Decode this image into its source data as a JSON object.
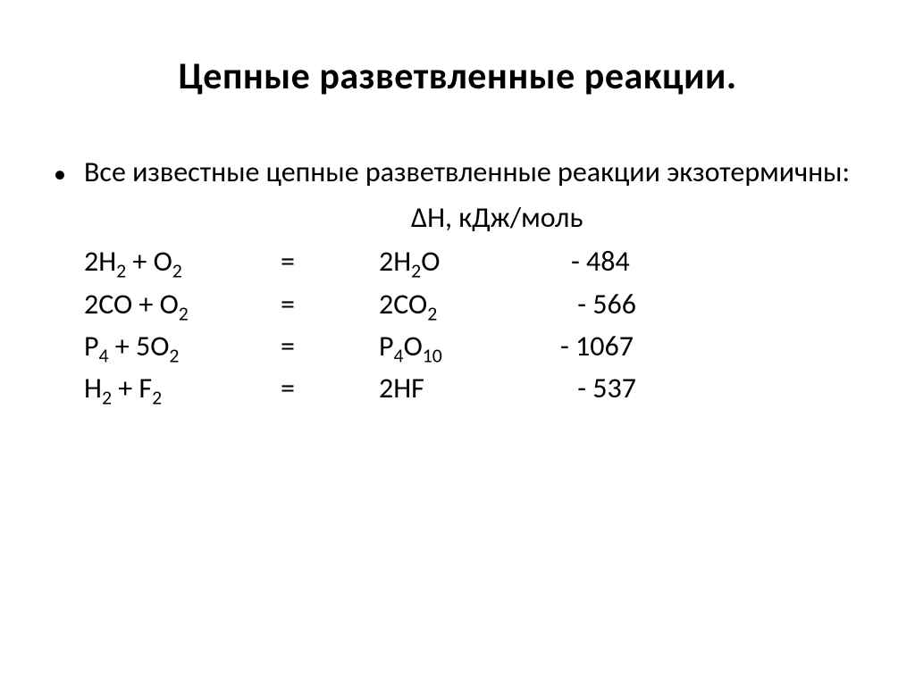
{
  "title": "Цепные разветвленные реакции.",
  "intro": "Все известные цепные разветвленные реакции экзотермичны:",
  "enthalpy_header_prefix": "Δ",
  "enthalpy_header": "H, кДж/моль",
  "reactions": [
    {
      "lhs_parts": [
        "2H",
        "2",
        " + O",
        "2"
      ],
      "eq": "=",
      "rhs_parts": [
        "2H",
        "2",
        "O"
      ],
      "value": "- 484"
    },
    {
      "lhs_parts": [
        "2CO + O",
        "2"
      ],
      "eq": "=",
      "rhs_parts": [
        "2CO",
        "2"
      ],
      "value": "- 566",
      "value_pad": " "
    },
    {
      "lhs_parts": [
        "P",
        "4",
        " + 5O",
        "2"
      ],
      "eq": "=",
      "rhs_parts": [
        "P",
        "4",
        "O",
        "10"
      ],
      "value": "- 1067"
    },
    {
      "lhs_parts": [
        "H",
        "2",
        " + F",
        "2"
      ],
      "eq": "=",
      "rhs_parts": [
        "2HF"
      ],
      "value": "- 537",
      "value_pad": "  "
    }
  ],
  "style": {
    "background_color": "#ffffff",
    "text_color": "#000000",
    "title_fontsize_pt": 32,
    "title_fontweight": "bold",
    "body_fontsize_pt": 24,
    "font_family": "Calibri"
  }
}
